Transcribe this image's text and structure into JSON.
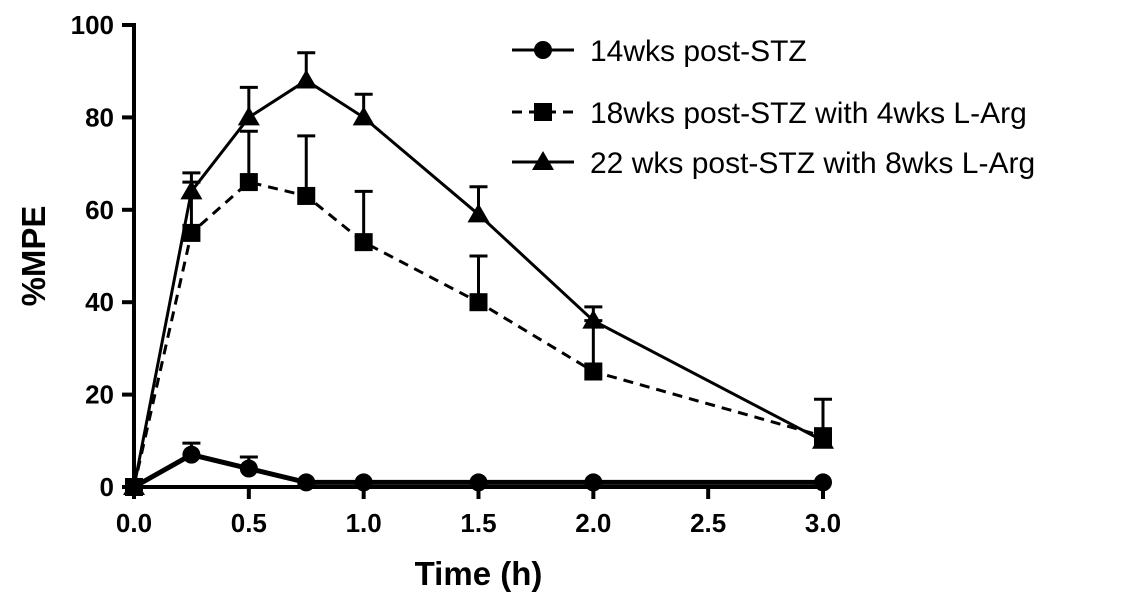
{
  "chart_data": {
    "type": "line",
    "title": "",
    "xlabel": "Time (h)",
    "ylabel": "%MPE",
    "xlim": [
      0,
      3
    ],
    "ylim": [
      0,
      100
    ],
    "xticks": [
      "0.0",
      "0.5",
      "1.0",
      "1.5",
      "2.0",
      "2.5",
      "3.0"
    ],
    "yticks": [
      "0",
      "20",
      "40",
      "60",
      "80",
      "100"
    ],
    "grid": false,
    "legend_position": "top-right",
    "series": [
      {
        "name": "14wks post-STZ",
        "marker": "circle",
        "line_style": "solid",
        "color": "#000000",
        "x": [
          0,
          0.25,
          0.5,
          0.75,
          1.0,
          1.5,
          2.0,
          3.0
        ],
        "y": [
          0,
          7,
          4,
          1,
          1,
          1,
          1,
          1
        ],
        "error_upper": [
          0,
          2.5,
          2.5,
          0,
          0,
          0,
          0,
          0
        ]
      },
      {
        "name": "18wks post-STZ with 4wks L-Arg",
        "marker": "square",
        "line_style": "dashed",
        "color": "#000000",
        "x": [
          0,
          0.25,
          0.5,
          0.75,
          1.0,
          1.5,
          2.0,
          3.0
        ],
        "y": [
          0,
          55,
          66,
          63,
          53,
          40,
          25,
          11
        ],
        "error_upper": [
          0,
          11,
          11,
          13,
          11,
          10,
          11,
          8
        ]
      },
      {
        "name": "22 wks post-STZ with 8wks L-Arg",
        "marker": "triangle",
        "line_style": "solid",
        "color": "#000000",
        "x": [
          0,
          0.25,
          0.5,
          0.75,
          1.0,
          1.5,
          2.0,
          3.0
        ],
        "y": [
          0,
          64,
          80,
          88,
          80,
          59,
          36,
          10
        ],
        "error_upper": [
          0,
          4,
          6.5,
          6,
          5,
          6,
          3,
          0
        ]
      }
    ]
  }
}
